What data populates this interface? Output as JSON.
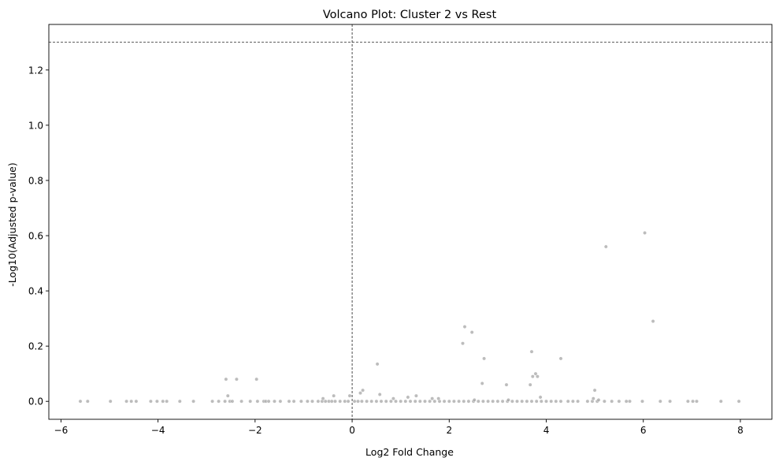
{
  "chart_data": {
    "type": "scatter",
    "title": "Volcano Plot: Cluster 2 vs Rest",
    "xlabel": "Log2 Fold Change",
    "ylabel": "-Log10(Adjusted p-value)",
    "xlim": [
      -6.25,
      8.65
    ],
    "ylim": [
      -0.065,
      1.365
    ],
    "xticks": [
      -6,
      -4,
      -2,
      0,
      2,
      4,
      6,
      8
    ],
    "xtick_labels": [
      "−6",
      "−4",
      "−2",
      "0",
      "2",
      "4",
      "6",
      "8"
    ],
    "yticks": [
      0.0,
      0.2,
      0.4,
      0.6,
      0.8,
      1.0,
      1.2
    ],
    "ytick_labels": [
      "0.0",
      "0.2",
      "0.4",
      "0.6",
      "0.8",
      "1.0",
      "1.2"
    ],
    "threshold_lines": {
      "horizontal_y": 1.301,
      "vertical_x": 0
    },
    "grid": false,
    "point_color": "#a0a0a0",
    "line_color": "#000000",
    "points": {
      "x": [
        -5.6,
        -5.45,
        -4.98,
        -4.65,
        -4.55,
        -4.45,
        -4.15,
        -4.02,
        -3.9,
        -3.82,
        -3.55,
        -3.27,
        -2.88,
        -2.75,
        -2.62,
        -2.52,
        -2.47,
        -2.28,
        -2.1,
        -1.95,
        -1.82,
        -1.78,
        -1.72,
        -1.6,
        -1.48,
        -1.3,
        -1.2,
        -1.05,
        -0.92,
        -0.82,
        -0.7,
        -0.62,
        -0.55,
        -0.48,
        -0.42,
        -0.35,
        -0.25,
        -0.15,
        -0.08,
        0.05,
        0.12,
        0.2,
        0.3,
        0.4,
        0.5,
        0.6,
        0.7,
        0.8,
        0.9,
        1.0,
        1.1,
        1.2,
        1.3,
        1.4,
        1.5,
        1.6,
        1.7,
        1.8,
        1.9,
        2.0,
        2.1,
        2.2,
        2.3,
        2.4,
        2.5,
        2.6,
        2.7,
        2.8,
        2.9,
        3.0,
        3.1,
        3.2,
        3.3,
        3.4,
        3.5,
        3.6,
        3.7,
        3.8,
        3.9,
        4.0,
        4.1,
        4.2,
        4.3,
        4.45,
        4.55,
        4.65,
        4.85,
        4.95,
        5.05,
        5.2,
        5.35,
        5.5,
        5.65,
        5.72,
        5.98,
        6.35,
        6.55,
        6.92,
        7.02,
        7.1,
        7.6,
        7.97,
        -2.6,
        -2.56,
        -2.38,
        -1.97,
        -0.6,
        -0.38,
        -0.05,
        0.17,
        0.22,
        0.52,
        0.57,
        0.85,
        1.15,
        1.32,
        1.65,
        1.78,
        2.28,
        2.32,
        2.47,
        2.52,
        2.68,
        2.72,
        3.18,
        3.22,
        3.67,
        3.7,
        3.72,
        3.78,
        3.82,
        3.88,
        4.3,
        4.97,
        5.0,
        5.08,
        5.23,
        6.03,
        6.2
      ],
      "y": [
        0,
        0,
        0,
        0,
        0,
        0,
        0,
        0,
        0,
        0,
        0,
        0,
        0,
        0,
        0,
        0,
        0,
        0,
        0,
        0,
        0,
        0,
        0,
        0,
        0,
        0,
        0,
        0,
        0,
        0,
        0,
        0,
        0,
        0,
        0,
        0,
        0,
        0,
        0,
        0,
        0,
        0,
        0,
        0,
        0,
        0,
        0,
        0,
        0,
        0,
        0,
        0,
        0,
        0,
        0,
        0,
        0,
        0,
        0,
        0,
        0,
        0,
        0,
        0,
        0,
        0,
        0,
        0,
        0,
        0,
        0,
        0,
        0,
        0,
        0,
        0,
        0,
        0,
        0,
        0,
        0,
        0,
        0,
        0,
        0,
        0,
        0,
        0,
        0,
        0,
        0,
        0,
        0,
        0,
        0,
        0,
        0,
        0,
        0,
        0,
        0,
        0,
        0.08,
        0.02,
        0.08,
        0.08,
        0.01,
        0.02,
        0.02,
        0.03,
        0.04,
        0.135,
        0.025,
        0.01,
        0.015,
        0.02,
        0.01,
        0.01,
        0.21,
        0.27,
        0.25,
        0.005,
        0.065,
        0.155,
        0.06,
        0.005,
        0.06,
        0.18,
        0.09,
        0.1,
        0.09,
        0.015,
        0.155,
        0.01,
        0.04,
        0.005,
        0.56,
        0.61,
        0.29
      ]
    }
  }
}
